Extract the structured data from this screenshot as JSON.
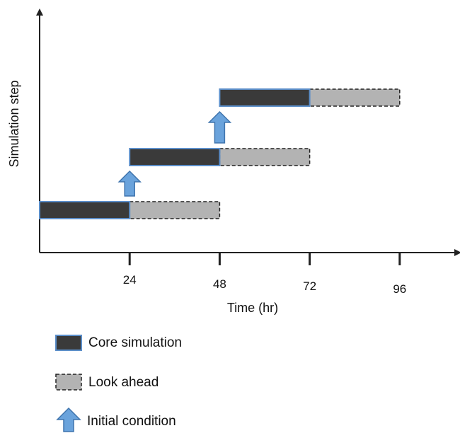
{
  "chart_data": {
    "type": "gantt",
    "xlabel": "Time (hr)",
    "ylabel": "Simulation step",
    "x_ticks": [
      24,
      48,
      72,
      96
    ],
    "steps": [
      {
        "core": [
          0,
          24
        ],
        "look_ahead": [
          24,
          48
        ]
      },
      {
        "core": [
          24,
          48
        ],
        "look_ahead": [
          48,
          72
        ]
      },
      {
        "core": [
          48,
          72
        ],
        "look_ahead": [
          72,
          96
        ]
      }
    ],
    "initial_condition_times": [
      24,
      48
    ],
    "legend": {
      "core": "Core simulation",
      "look_ahead": "Look ahead",
      "initial_condition": "Initial condition"
    },
    "colors": {
      "core_fill": "#3a3a3a",
      "core_border": "#5b8ec9",
      "look_ahead_fill": "#b3b3b3",
      "look_ahead_border": "#222222",
      "arrow_fill": "#6aa3dc",
      "arrow_border": "#3f74ad",
      "axis": "#222222"
    }
  }
}
